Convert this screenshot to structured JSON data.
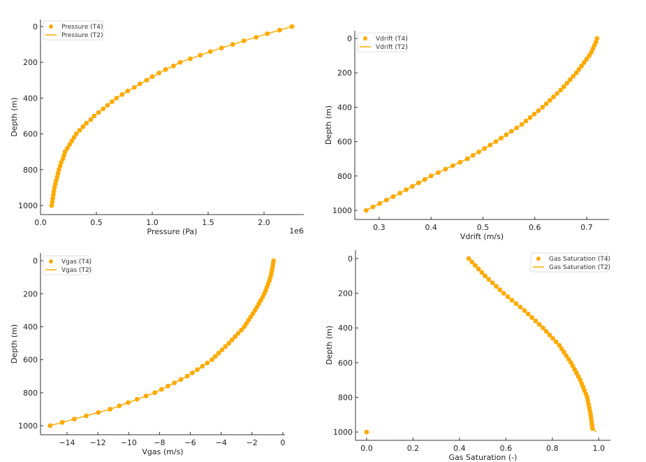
{
  "chart_data": [
    {
      "type": "scatter",
      "xlabel": "Pressure (Pa)",
      "ylabel": "Depth (m)",
      "x_offset_label": "1e6",
      "xlim": [
        0,
        2356000
      ],
      "ylim": [
        1051,
        -39
      ],
      "y_inverted": true,
      "grid": false,
      "legend_placement": "top-left",
      "xticks": [
        0,
        500000,
        1000000,
        1500000,
        2000000
      ],
      "xtick_labels": [
        "0.0",
        "0.5",
        "1.0",
        "1.5",
        "2.0"
      ],
      "yticks": [
        0,
        200,
        400,
        600,
        800,
        1000
      ],
      "ytick_labels": [
        "0",
        "200",
        "400",
        "600",
        "800",
        "1000"
      ],
      "depth": [
        0,
        20,
        40,
        60,
        80,
        100,
        120,
        140,
        160,
        180,
        200,
        220,
        240,
        260,
        280,
        300,
        320,
        340,
        360,
        380,
        400,
        420,
        440,
        460,
        480,
        500,
        520,
        540,
        560,
        580,
        600,
        620,
        640,
        660,
        680,
        700,
        720,
        740,
        760,
        780,
        800,
        820,
        840,
        860,
        880,
        900,
        920,
        940,
        960,
        980,
        1000
      ],
      "series": [
        {
          "name": "Pressure (T4)",
          "style": "markers",
          "color": "#FFAA00",
          "values": [
            2250000,
            2140000,
            2030000,
            1930000,
            1820000,
            1720000,
            1620000,
            1520000,
            1430000,
            1340000,
            1250000,
            1190000,
            1120000,
            1060000,
            1000000,
            950000,
            890000,
            840000,
            780000,
            730000,
            680000,
            640000,
            600000,
            560000,
            520000,
            480000,
            450000,
            410000,
            380000,
            350000,
            320000,
            300000,
            280000,
            260000,
            240000,
            220000,
            210000,
            200000,
            185000,
            175000,
            165000,
            157000,
            149000,
            141000,
            133000,
            125000,
            120000,
            115000,
            110000,
            105000,
            100000
          ]
        },
        {
          "name": "Pressure (T2)",
          "style": "line",
          "color": "#FFAA00",
          "values": [
            2250000,
            2140000,
            2030000,
            1930000,
            1820000,
            1720000,
            1620000,
            1520000,
            1430000,
            1340000,
            1250000,
            1190000,
            1120000,
            1060000,
            1000000,
            950000,
            890000,
            840000,
            780000,
            730000,
            680000,
            640000,
            600000,
            560000,
            520000,
            480000,
            450000,
            410000,
            380000,
            350000,
            320000,
            300000,
            280000,
            260000,
            240000,
            220000,
            210000,
            200000,
            185000,
            175000,
            165000,
            157000,
            149000,
            141000,
            133000,
            125000,
            120000,
            115000,
            110000,
            105000,
            100000
          ]
        }
      ]
    },
    {
      "type": "scatter",
      "xlabel": "Vdrift (m/s)",
      "ylabel": "Depth (m)",
      "xlim": [
        0.253,
        0.743
      ],
      "ylim": [
        1053,
        -45
      ],
      "y_inverted": true,
      "grid": false,
      "legend_placement": "top-left",
      "xticks": [
        0.3,
        0.4,
        0.5,
        0.6,
        0.7
      ],
      "xtick_labels": [
        "0.3",
        "0.4",
        "0.5",
        "0.6",
        "0.7"
      ],
      "yticks": [
        0,
        200,
        400,
        600,
        800,
        1000
      ],
      "ytick_labels": [
        "0",
        "200",
        "400",
        "600",
        "800",
        "1000"
      ],
      "depth": [
        0,
        20,
        40,
        60,
        80,
        100,
        120,
        140,
        160,
        180,
        200,
        220,
        240,
        260,
        280,
        300,
        320,
        340,
        360,
        380,
        400,
        420,
        440,
        460,
        480,
        500,
        520,
        540,
        560,
        580,
        600,
        620,
        640,
        660,
        680,
        700,
        720,
        740,
        760,
        780,
        800,
        820,
        840,
        860,
        880,
        900,
        920,
        940,
        960,
        980,
        1000
      ],
      "series": [
        {
          "name": "Vdrift (T4)",
          "style": "markers",
          "color": "#FFAA00",
          "values": [
            0.72,
            0.718,
            0.715,
            0.712,
            0.709,
            0.705,
            0.7,
            0.695,
            0.69,
            0.685,
            0.68,
            0.674,
            0.668,
            0.662,
            0.656,
            0.65,
            0.643,
            0.636,
            0.629,
            0.622,
            0.615,
            0.607,
            0.599,
            0.591,
            0.583,
            0.575,
            0.565,
            0.555,
            0.545,
            0.535,
            0.525,
            0.514,
            0.503,
            0.492,
            0.481,
            0.47,
            0.456,
            0.442,
            0.428,
            0.414,
            0.4,
            0.388,
            0.376,
            0.364,
            0.352,
            0.34,
            0.327,
            0.314,
            0.301,
            0.288,
            0.275
          ]
        },
        {
          "name": "Vdrift (T2)",
          "style": "line",
          "color": "#FFAA00",
          "values": [
            0.72,
            0.718,
            0.715,
            0.712,
            0.709,
            0.705,
            0.7,
            0.695,
            0.69,
            0.685,
            0.68,
            0.674,
            0.668,
            0.662,
            0.656,
            0.65,
            0.643,
            0.636,
            0.629,
            0.622,
            0.615,
            0.607,
            0.599,
            0.591,
            0.583,
            0.575,
            0.565,
            0.555,
            0.545,
            0.535,
            0.525,
            0.514,
            0.503,
            0.492,
            0.481,
            0.47,
            0.456,
            0.442,
            0.428,
            0.414,
            0.4,
            0.388,
            0.376,
            0.364,
            0.352,
            0.34,
            0.327,
            0.314,
            0.301,
            0.288,
            0.275
          ]
        }
      ]
    },
    {
      "type": "scatter",
      "xlabel": "Vgas (m/s)",
      "ylabel": "Depth (m)",
      "xlim": [
        -15.72,
        0.14
      ],
      "ylim": [
        1055,
        -47
      ],
      "y_inverted": true,
      "grid": false,
      "legend_placement": "top-left",
      "xticks": [
        -14,
        -12,
        -10,
        -8,
        -6,
        -4,
        -2,
        0
      ],
      "xtick_labels": [
        "−14",
        "−12",
        "−10",
        "−8",
        "−6",
        "−4",
        "−2",
        "0"
      ],
      "yticks": [
        0,
        200,
        400,
        600,
        800,
        1000
      ],
      "ytick_labels": [
        "0",
        "200",
        "400",
        "600",
        "800",
        "1000"
      ],
      "depth": [
        0,
        20,
        40,
        60,
        80,
        100,
        120,
        140,
        160,
        180,
        200,
        220,
        240,
        260,
        280,
        300,
        320,
        340,
        360,
        380,
        400,
        420,
        440,
        460,
        480,
        500,
        520,
        540,
        560,
        580,
        600,
        620,
        640,
        660,
        680,
        700,
        720,
        740,
        760,
        780,
        800,
        820,
        840,
        860,
        880,
        900,
        920,
        940,
        960,
        980,
        1000
      ],
      "series": [
        {
          "name": "Vgas (T4)",
          "style": "markers",
          "color": "#FFAA00",
          "values": [
            -0.6,
            -0.63,
            -0.67,
            -0.71,
            -0.75,
            -0.8,
            -0.87,
            -0.95,
            -1.03,
            -1.11,
            -1.2,
            -1.31,
            -1.43,
            -1.55,
            -1.67,
            -1.8,
            -1.94,
            -2.08,
            -2.22,
            -2.36,
            -2.5,
            -2.69,
            -2.89,
            -3.09,
            -3.29,
            -3.5,
            -3.72,
            -3.94,
            -4.16,
            -4.38,
            -4.6,
            -4.9,
            -5.22,
            -5.54,
            -5.87,
            -6.2,
            -6.61,
            -7.03,
            -7.45,
            -7.87,
            -8.3,
            -8.87,
            -9.45,
            -10.03,
            -10.61,
            -11.2,
            -11.97,
            -12.75,
            -13.53,
            -14.31,
            -15.1
          ]
        },
        {
          "name": "Vgas (T2)",
          "style": "line",
          "color": "#FFAA00",
          "values": [
            -0.6,
            -0.63,
            -0.67,
            -0.71,
            -0.75,
            -0.8,
            -0.87,
            -0.95,
            -1.03,
            -1.11,
            -1.2,
            -1.31,
            -1.43,
            -1.55,
            -1.67,
            -1.8,
            -1.94,
            -2.08,
            -2.22,
            -2.36,
            -2.5,
            -2.69,
            -2.89,
            -3.09,
            -3.29,
            -3.5,
            -3.72,
            -3.94,
            -4.16,
            -4.38,
            -4.6,
            -4.9,
            -5.22,
            -5.54,
            -5.87,
            -6.2,
            -6.61,
            -7.03,
            -7.45,
            -7.87,
            -8.3,
            -8.87,
            -9.45,
            -10.03,
            -10.61,
            -11.2,
            -11.97,
            -12.75,
            -13.53,
            -14.31,
            -15.1
          ]
        }
      ]
    },
    {
      "type": "scatter",
      "xlabel": "Gas Saturation (-)",
      "ylabel": "Depth (m)",
      "xlim": [
        -0.048,
        1.05
      ],
      "ylim": [
        1048,
        -48
      ],
      "y_inverted": true,
      "grid": false,
      "legend_placement": "top-right",
      "xticks": [
        0.0,
        0.2,
        0.4,
        0.6,
        0.8,
        1.0
      ],
      "xtick_labels": [
        "0.0",
        "0.2",
        "0.4",
        "0.6",
        "0.8",
        "1.0"
      ],
      "yticks": [
        0,
        200,
        400,
        600,
        800,
        1000
      ],
      "ytick_labels": [
        "0",
        "200",
        "400",
        "600",
        "800",
        "1000"
      ],
      "depth": [
        0,
        20,
        40,
        60,
        80,
        100,
        120,
        140,
        160,
        180,
        200,
        220,
        240,
        260,
        280,
        300,
        320,
        340,
        360,
        380,
        400,
        420,
        440,
        460,
        480,
        500,
        520,
        540,
        560,
        580,
        600,
        620,
        640,
        660,
        680,
        700,
        720,
        740,
        760,
        780,
        800,
        820,
        840,
        860,
        880,
        900,
        920,
        940,
        960,
        980,
        1000
      ],
      "series": [
        {
          "name": "Gas Saturation (T4)",
          "style": "markers",
          "color": "#FFAA00",
          "values": [
            0.44,
            0.454,
            0.468,
            0.482,
            0.496,
            0.51,
            0.526,
            0.542,
            0.558,
            0.574,
            0.59,
            0.608,
            0.626,
            0.644,
            0.662,
            0.68,
            0.696,
            0.712,
            0.728,
            0.744,
            0.76,
            0.774,
            0.788,
            0.802,
            0.816,
            0.83,
            0.84,
            0.85,
            0.86,
            0.87,
            0.88,
            0.888,
            0.896,
            0.904,
            0.912,
            0.92,
            0.926,
            0.932,
            0.938,
            0.944,
            0.95,
            0.953,
            0.956,
            0.959,
            0.962,
            0.965,
            0.967,
            0.969,
            0.971,
            0.973,
            0.0
          ]
        },
        {
          "name": "Gas Saturation (T2)",
          "style": "line",
          "color": "#FFAA00",
          "values": [
            0.44,
            0.454,
            0.468,
            0.482,
            0.496,
            0.51,
            0.526,
            0.542,
            0.558,
            0.574,
            0.59,
            0.608,
            0.626,
            0.644,
            0.662,
            0.68,
            0.696,
            0.712,
            0.728,
            0.744,
            0.76,
            0.774,
            0.788,
            0.802,
            0.816,
            0.83,
            0.84,
            0.85,
            0.86,
            0.87,
            0.88,
            0.888,
            0.896,
            0.904,
            0.912,
            0.92,
            0.926,
            0.932,
            0.938,
            0.944,
            0.95,
            0.953,
            0.956,
            0.959,
            0.962,
            0.965,
            0.967,
            0.969,
            0.971,
            0.973,
            0.99
          ]
        }
      ]
    }
  ]
}
